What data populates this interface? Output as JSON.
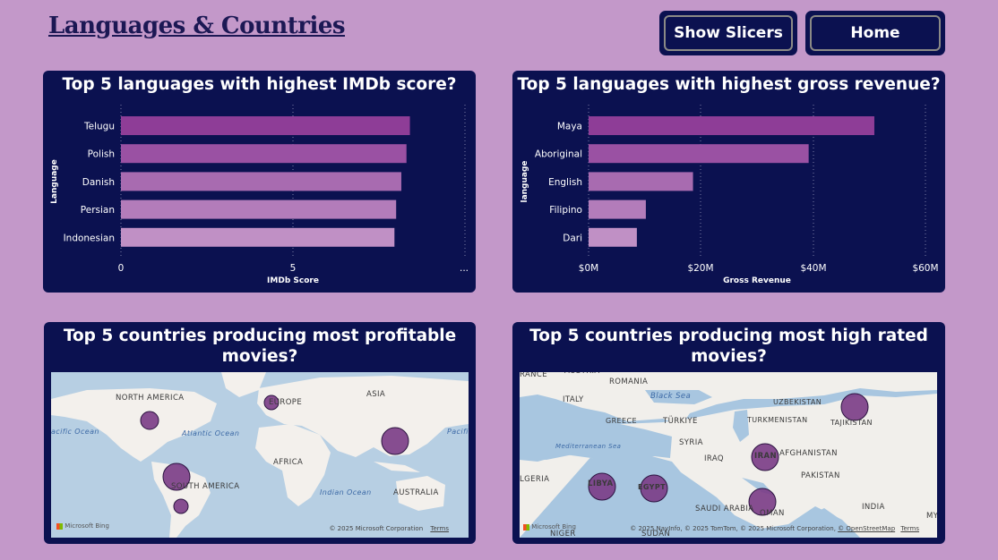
{
  "page": {
    "title": "Languages & Countries"
  },
  "buttons": {
    "show_slicers": "Show Slicers",
    "home": "Home"
  },
  "colors": {
    "background": "#c398c9",
    "card": "#0b1150",
    "bar_shades": [
      "#8e3d97",
      "#9a51a3",
      "#a86bb0",
      "#b37cba",
      "#c090c5"
    ]
  },
  "charts": {
    "imdb": {
      "title": "Top 5 languages with highest IMDb score?",
      "ylabel": "Language",
      "xlabel": "IMDb Score",
      "ticks": [
        "0",
        "5",
        "..."
      ]
    },
    "gross": {
      "title": "Top 5 languages with highest gross revenue?",
      "ylabel": "language",
      "xlabel": "Gross Revenue",
      "ticks": [
        "$0M",
        "$20M",
        "$40M",
        "$60M"
      ]
    }
  },
  "chart_data": [
    {
      "type": "bar",
      "orientation": "horizontal",
      "title": "Top 5 languages with highest IMDb score?",
      "xlabel": "IMDb Score",
      "ylabel": "Language",
      "categories": [
        "Telugu",
        "Polish",
        "Danish",
        "Persian",
        "Indonesian"
      ],
      "values": [
        8.4,
        8.3,
        8.15,
        8.0,
        7.95
      ],
      "xlim": [
        0,
        10
      ],
      "grid": true
    },
    {
      "type": "bar",
      "orientation": "horizontal",
      "title": "Top 5 languages with highest gross revenue?",
      "xlabel": "Gross Revenue",
      "ylabel": "language",
      "categories": [
        "Maya",
        "Aboriginal",
        "English",
        "Filipino",
        "Dari"
      ],
      "values": [
        50.9,
        39.2,
        18.6,
        10.2,
        8.6
      ],
      "unit": "$M",
      "xlim": [
        0,
        60
      ],
      "grid": true
    }
  ],
  "maps": {
    "profitable": {
      "title": "Top 5 countries producing most profitable movies?",
      "labels": [
        "NORTH AMERICA",
        "EUROPE",
        "ASIA",
        "Atlantic Ocean",
        "AFRICA",
        "SOUTH AMERICA",
        "Indian Ocean",
        "AUSTRALIA",
        "acific Ocean",
        "Pacifi"
      ],
      "attribution": "© 2025 Microsoft Corporation",
      "terms": "Terms",
      "logo": "Microsoft Bing"
    },
    "high_rated": {
      "title": "Top 5 countries producing most high rated movies?",
      "labels": [
        "RANCE",
        "AUSTRIA",
        "ROMANIA",
        "Black Sea",
        "ITALY",
        "GREECE",
        "TÜRKIYE",
        "UZBEKISTAN",
        "TURKMENISTAN",
        "TAJIKISTAN",
        "Mediterranean Sea",
        "SYRIA",
        "IRAQ",
        "IRAN",
        "AFGHANISTAN",
        "PAKISTAN",
        "LGERIA",
        "LIBYA",
        "EGYPT",
        "SAUDI ARABIA",
        "OMAN",
        "INDIA",
        "NIGER",
        "SUDAN",
        "MY"
      ],
      "attribution": "© 2025 NavInfo, © 2025 TomTom, © 2025 Microsoft Corporation,",
      "osm": "© OpenStreetMap",
      "terms": "Terms",
      "logo": "Microsoft Bing"
    }
  }
}
